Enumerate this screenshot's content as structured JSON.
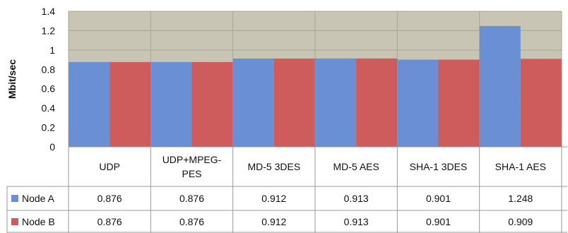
{
  "chart_data": {
    "type": "bar",
    "ylabel": "Mbit/sec",
    "ylim": [
      0,
      1.4
    ],
    "yticks": [
      "0",
      "0.2",
      "0.4",
      "0.6",
      "0.8",
      "1",
      "1.2",
      "1.4"
    ],
    "grid": true,
    "legend": "data-table",
    "categories": [
      "UDP",
      "UDP+MPEG-PES",
      "MD-5 3DES",
      "MD-5 AES",
      "SHA-1 3DES",
      "SHA-1 AES"
    ],
    "series": [
      {
        "name": "Node A",
        "color": "#6b8fd4",
        "values": [
          0.876,
          0.876,
          0.912,
          0.913,
          0.901,
          1.248
        ],
        "labels": [
          "0.876",
          "0.876",
          "0.912",
          "0.913",
          "0.901",
          "1.248"
        ]
      },
      {
        "name": "Node B",
        "color": "#cf5c5c",
        "values": [
          0.876,
          0.876,
          0.912,
          0.913,
          0.901,
          0.909
        ],
        "labels": [
          "0.876",
          "0.876",
          "0.912",
          "0.913",
          "0.901",
          "0.909"
        ]
      }
    ],
    "colors": {
      "plot_background": "#c8c5b4",
      "grid": "#a8a596",
      "table_border": "#9a9a9a"
    }
  }
}
